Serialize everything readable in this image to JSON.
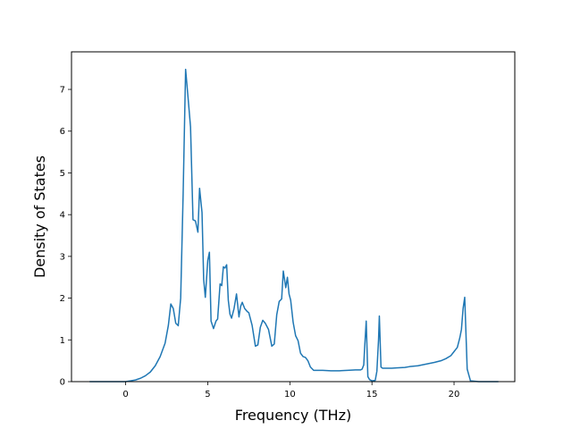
{
  "chart_data": {
    "type": "line",
    "title": "",
    "xlabel": "Frequency (THz)",
    "ylabel": "Density of States",
    "xlim": [
      -3.3,
      23.7
    ],
    "ylim": [
      0,
      7.9
    ],
    "xticks": [
      0,
      5,
      10,
      15,
      20
    ],
    "yticks": [
      0,
      1,
      2,
      3,
      4,
      5,
      6,
      7
    ],
    "grid": false,
    "legend": "none",
    "line_color": "#1f77b4",
    "series": [
      {
        "x": [
          -2.2,
          -1.5,
          -1.0,
          -0.5,
          0.0,
          0.3,
          0.6,
          0.9,
          1.2,
          1.5,
          1.8,
          2.1,
          2.4,
          2.6,
          2.75,
          2.9,
          3.05,
          3.2,
          3.35,
          3.5,
          3.65,
          3.8,
          3.95,
          4.1,
          4.25,
          4.4,
          4.5,
          4.65,
          4.75,
          4.85,
          5.0,
          5.1,
          5.2,
          5.35,
          5.5,
          5.6,
          5.75,
          5.85,
          5.95,
          6.05,
          6.15,
          6.25,
          6.35,
          6.45,
          6.6,
          6.75,
          6.9,
          7.0,
          7.1,
          7.25,
          7.4,
          7.5,
          7.7,
          7.9,
          8.05,
          8.2,
          8.35,
          8.5,
          8.7,
          8.9,
          9.05,
          9.2,
          9.35,
          9.5,
          9.6,
          9.75,
          9.85,
          9.95,
          10.05,
          10.2,
          10.35,
          10.5,
          10.65,
          10.8,
          10.95,
          11.1,
          11.25,
          11.45,
          11.6,
          11.8,
          12.0,
          12.5,
          13.0,
          13.5,
          14.0,
          14.3,
          14.4,
          14.5,
          14.55,
          14.65,
          14.75,
          14.85,
          15.0,
          15.2,
          15.3,
          15.4,
          15.45,
          15.55,
          15.65,
          15.8,
          16.2,
          16.5,
          17.0,
          17.3,
          17.8,
          18.3,
          18.8,
          19.2,
          19.5,
          19.8,
          20.0,
          20.2,
          20.35,
          20.45,
          20.55,
          20.65,
          20.8,
          21.0,
          21.5,
          22.0,
          22.7
        ],
        "y": [
          0.0,
          0.0,
          0.0,
          0.0,
          0.0,
          0.02,
          0.04,
          0.08,
          0.14,
          0.23,
          0.38,
          0.6,
          0.92,
          1.35,
          1.86,
          1.75,
          1.4,
          1.34,
          2.0,
          4.5,
          7.48,
          6.8,
          6.1,
          3.88,
          3.85,
          3.58,
          4.63,
          4.05,
          2.45,
          2.02,
          2.9,
          3.1,
          1.45,
          1.27,
          1.45,
          1.5,
          2.34,
          2.3,
          2.75,
          2.72,
          2.8,
          1.95,
          1.62,
          1.52,
          1.75,
          2.1,
          1.55,
          1.8,
          1.9,
          1.75,
          1.68,
          1.65,
          1.35,
          0.85,
          0.88,
          1.3,
          1.47,
          1.4,
          1.25,
          0.85,
          0.9,
          1.6,
          1.92,
          1.98,
          2.65,
          2.25,
          2.5,
          2.1,
          1.95,
          1.42,
          1.1,
          0.98,
          0.68,
          0.6,
          0.58,
          0.5,
          0.35,
          0.27,
          0.27,
          0.27,
          0.27,
          0.26,
          0.26,
          0.27,
          0.28,
          0.28,
          0.3,
          0.4,
          0.78,
          1.45,
          0.12,
          0.05,
          0.02,
          0.03,
          0.25,
          1.0,
          1.57,
          0.35,
          0.32,
          0.32,
          0.32,
          0.33,
          0.34,
          0.36,
          0.38,
          0.42,
          0.46,
          0.5,
          0.55,
          0.62,
          0.72,
          0.82,
          1.05,
          1.25,
          1.75,
          2.02,
          0.3,
          0.02,
          0.0,
          0.0,
          0.0
        ]
      }
    ]
  }
}
